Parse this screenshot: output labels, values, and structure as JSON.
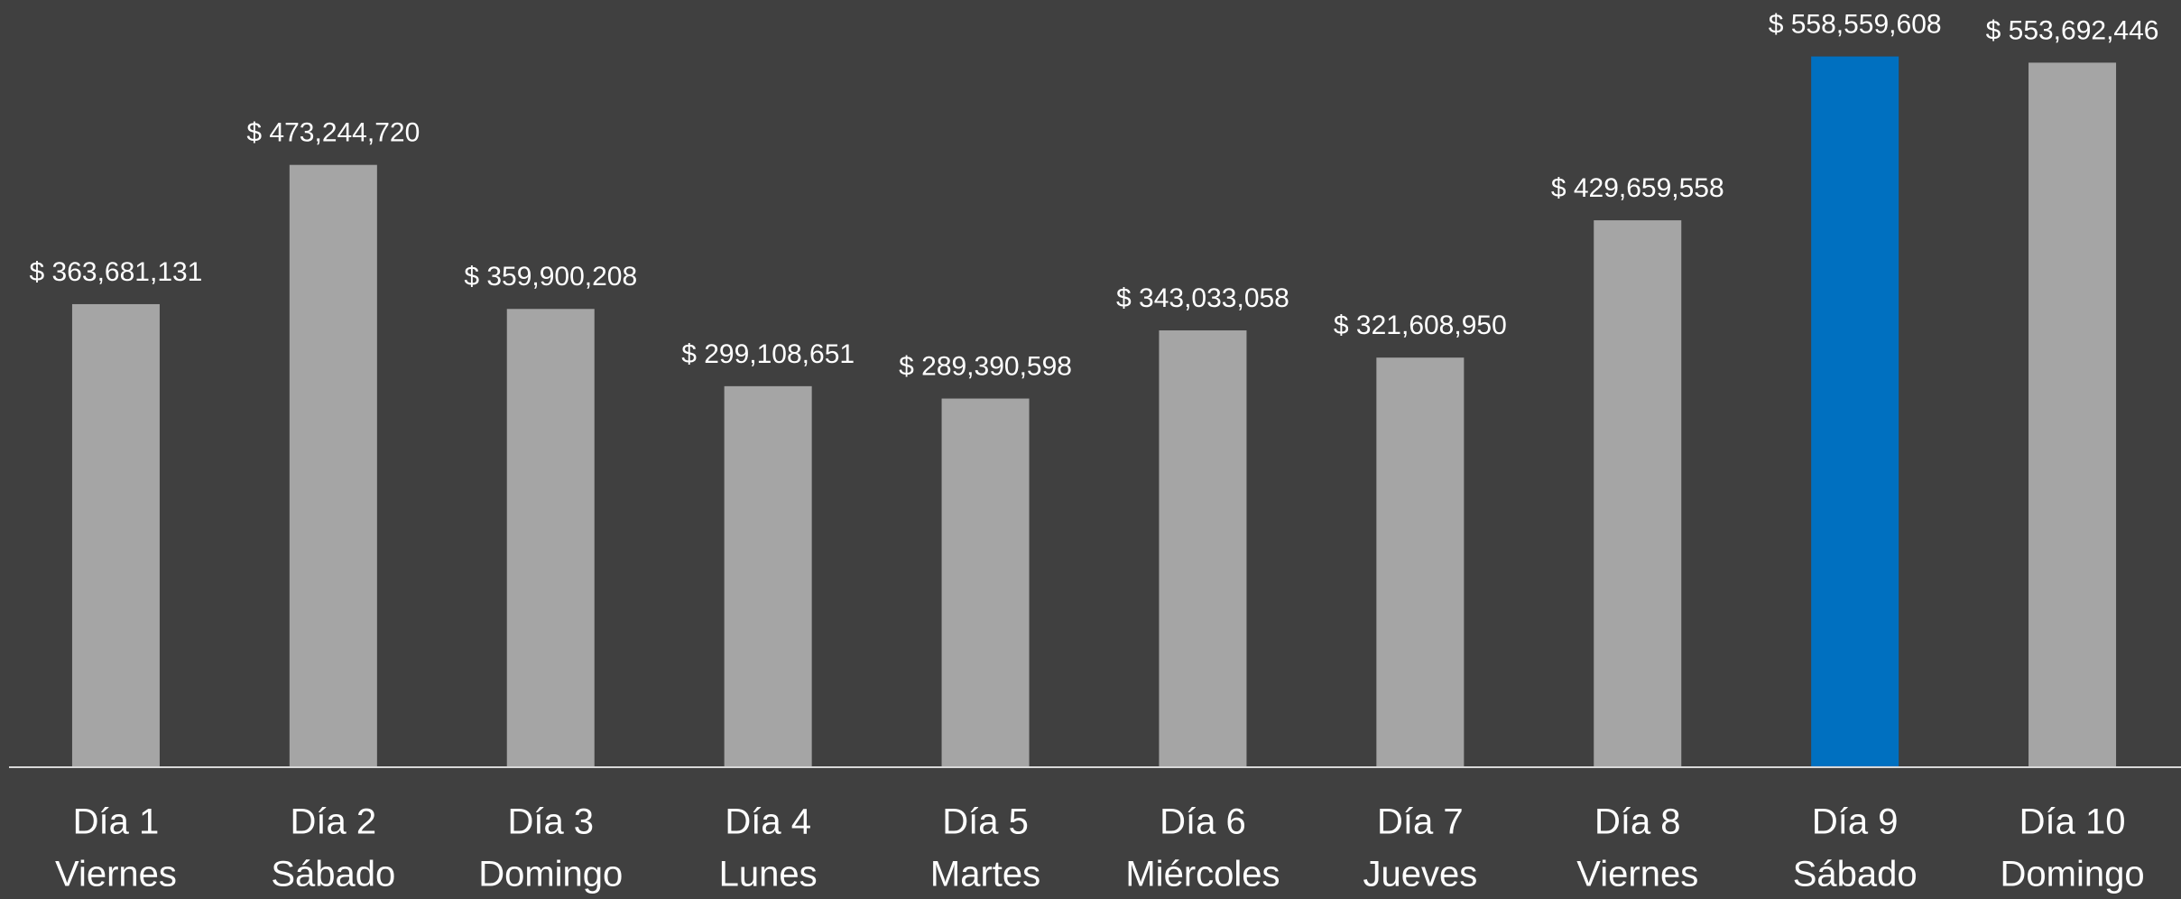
{
  "chart_data": {
    "type": "bar",
    "categories": [
      [
        "Día 1",
        "Viernes"
      ],
      [
        "Día 2",
        "Sábado"
      ],
      [
        "Día 3",
        "Domingo"
      ],
      [
        "Día 4",
        "Lunes"
      ],
      [
        "Día 5",
        "Martes"
      ],
      [
        "Día 6",
        "Miércoles"
      ],
      [
        "Día 7",
        "Jueves"
      ],
      [
        "Día 8",
        "Viernes"
      ],
      [
        "Día 9",
        "Sábado"
      ],
      [
        "Día 10",
        "Domingo"
      ]
    ],
    "values": [
      363681131,
      473244720,
      359900208,
      299108651,
      289390598,
      343033058,
      321608950,
      429659558,
      558559608,
      553692446
    ],
    "value_labels": [
      "$ 363,681,131",
      "$ 473,244,720",
      "$ 359,900,208",
      "$ 299,108,651",
      "$ 289,390,598",
      "$ 343,033,058",
      "$ 321,608,950",
      "$ 429,659,558",
      "$ 558,559,608",
      "$ 553,692,446"
    ],
    "colors": [
      "#a5a5a5",
      "#a5a5a5",
      "#a5a5a5",
      "#a5a5a5",
      "#a5a5a5",
      "#a5a5a5",
      "#a5a5a5",
      "#a5a5a5",
      "#0070c0",
      "#a5a5a5"
    ],
    "ylim": [
      0,
      603000000
    ]
  }
}
